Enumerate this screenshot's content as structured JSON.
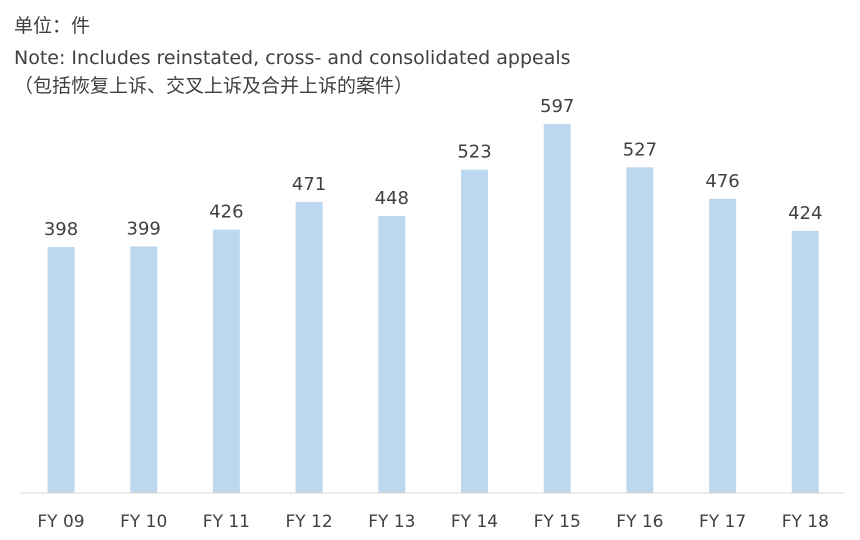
{
  "header": {
    "unit": "单位：件",
    "note_en": "Note: Includes reinstated, cross- and consolidated appeals",
    "note_zh": "（包括恢复上诉、交叉上诉及合并上诉的案件）"
  },
  "chart_data": {
    "type": "bar",
    "title": "",
    "xlabel": "",
    "ylabel": "",
    "categories": [
      "FY 09",
      "FY 10",
      "FY 11",
      "FY 12",
      "FY 13",
      "FY 14",
      "FY 15",
      "FY 16",
      "FY 17",
      "FY 18"
    ],
    "values": [
      398,
      399,
      426,
      471,
      448,
      523,
      597,
      527,
      476,
      424
    ],
    "ylim": [
      0,
      640
    ],
    "grid": false,
    "legend": "none",
    "bar_color": "#BDD7EE"
  }
}
